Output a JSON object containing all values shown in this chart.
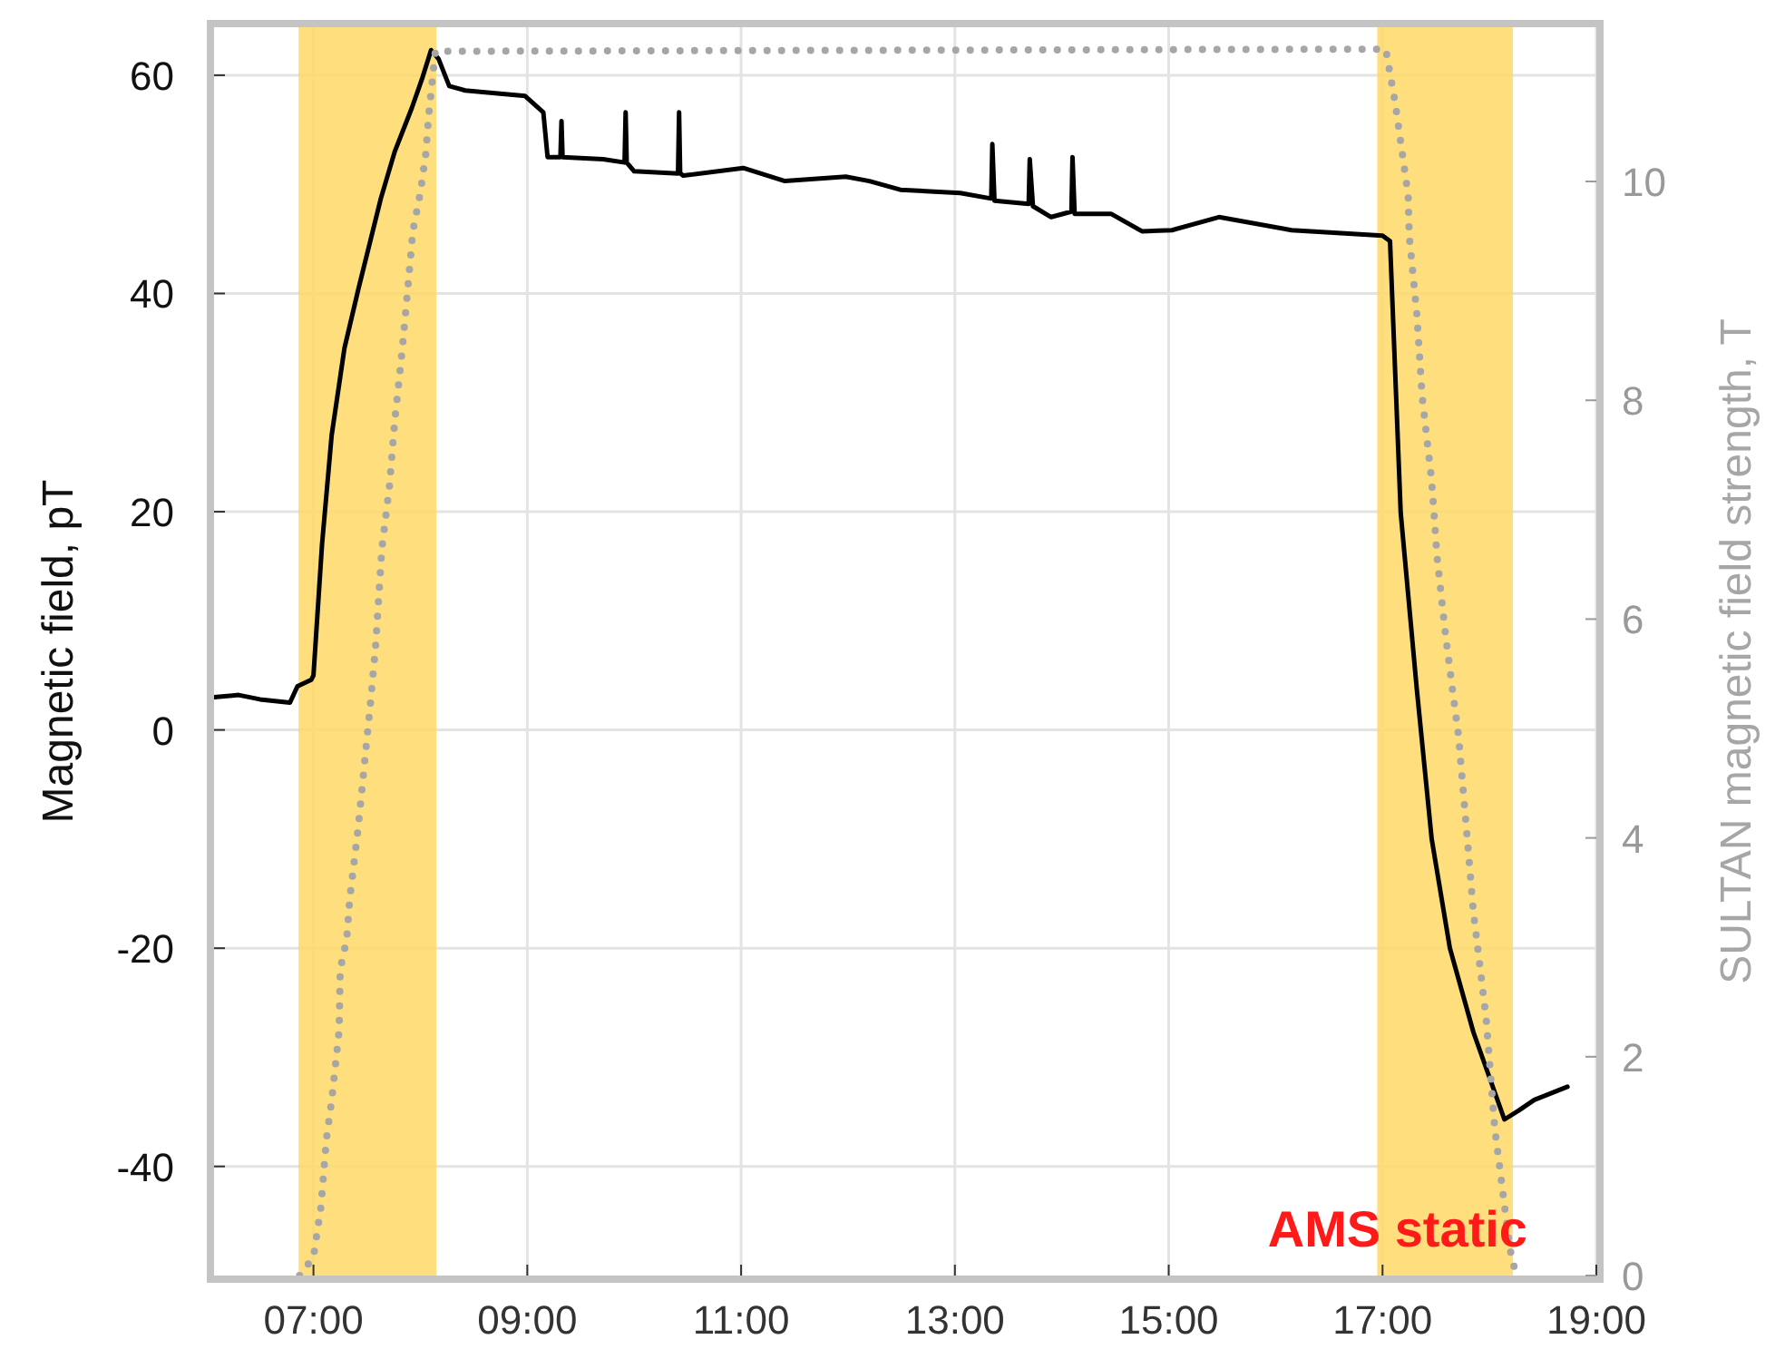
{
  "chart_data": {
    "type": "line",
    "xlabel": null,
    "ylabel": "Magnetic field, pT",
    "y2label": "SULTAN magnetic field strength, T",
    "xlim": [
      6.07,
      19.0
    ],
    "xticks": [
      {
        "value": 7,
        "label": "07:00"
      },
      {
        "value": 9,
        "label": "09:00"
      },
      {
        "value": 11,
        "label": "11:00"
      },
      {
        "value": 13,
        "label": "13:00"
      },
      {
        "value": 15,
        "label": "15:00"
      },
      {
        "value": 17,
        "label": "17:00"
      },
      {
        "value": 19,
        "label": "19:00"
      }
    ],
    "ylim": [
      -50,
      64.4
    ],
    "yticks": [
      -40,
      -20,
      0,
      20,
      40,
      60
    ],
    "y2lim": [
      0,
      11.41
    ],
    "y2ticks": [
      0,
      2,
      4,
      6,
      8,
      10
    ],
    "grid": true,
    "bands": [
      {
        "axis": "x",
        "from": 6.86,
        "to": 8.15,
        "color": "#ffd966"
      },
      {
        "axis": "x",
        "from": 16.95,
        "to": 18.22,
        "color": "#ffd966"
      }
    ],
    "annotations": [
      "AMS static"
    ],
    "series": [
      {
        "color": "#000000",
        "line_style": "solid",
        "x": [
          6.07,
          6.3,
          6.5,
          6.78,
          6.85,
          6.98,
          7.0,
          7.08,
          7.17,
          7.29,
          7.42,
          7.63,
          7.76,
          7.92,
          8.02,
          8.1,
          8.17,
          8.27,
          8.42,
          8.98,
          9.15,
          9.19,
          9.31,
          9.32,
          9.33,
          9.71,
          9.91,
          9.92,
          9.93,
          10.0,
          10.41,
          10.42,
          10.43,
          10.46,
          11.02,
          11.41,
          11.98,
          12.2,
          12.49,
          13.05,
          13.34,
          13.35,
          13.37,
          13.69,
          13.7,
          13.73,
          13.9,
          14.09,
          14.1,
          14.12,
          14.46,
          14.75,
          15.03,
          15.47,
          16.15,
          17.0,
          17.07,
          17.17,
          17.32,
          17.46,
          17.63,
          17.85,
          18.14,
          18.27,
          18.42,
          18.73
        ],
        "values": [
          3.0,
          3.2,
          2.8,
          2.5,
          4.0,
          4.6,
          5.0,
          17,
          27,
          35,
          40.4,
          48.7,
          53,
          57,
          59.8,
          62.3,
          61.5,
          59,
          58.6,
          58.1,
          56.6,
          52.5,
          52.5,
          55.8,
          52.5,
          52.3,
          52,
          56.6,
          52,
          51.2,
          51,
          56.6,
          51,
          50.8,
          51.5,
          50.3,
          50.7,
          50.3,
          49.5,
          49.2,
          48.7,
          53.7,
          48.5,
          48.2,
          52.3,
          48,
          47,
          47.5,
          52.5,
          47.3,
          47.3,
          45.7,
          45.8,
          47,
          45.8,
          45.3,
          44.8,
          19.9,
          3.8,
          -10,
          -20,
          -27.7,
          -35.7,
          -34.9,
          -33.9,
          -32.7
        ]
      },
      {
        "color": "#a6a6a6",
        "axis": "y2",
        "line_style": "dotted",
        "x": [
          6.87,
          7.0,
          7.07,
          7.12,
          7.17,
          7.24,
          7.25,
          7.31,
          7.34,
          7.42,
          7.49,
          7.53,
          7.58,
          7.64,
          7.71,
          7.76,
          7.83,
          7.88,
          7.93,
          8.0,
          8.05,
          8.08,
          8.14,
          17.03,
          17.12,
          17.17,
          17.24,
          17.25,
          17.32,
          17.37,
          17.46,
          17.51,
          17.59,
          17.66,
          17.71,
          17.8,
          17.85,
          17.9,
          17.97,
          18.05,
          18.1,
          18.19,
          18.25
        ],
        "values": [
          0,
          0.17,
          0.63,
          1.24,
          1.6,
          2.24,
          2.8,
          3.07,
          3.45,
          4.11,
          4.81,
          5.2,
          5.74,
          6.65,
          7.21,
          7.81,
          8.46,
          9.0,
          9.55,
          9.9,
          10.25,
          10.63,
          11.19,
          11.21,
          10.71,
          10.36,
          9.87,
          9.5,
          8.8,
          8.04,
          7.26,
          6.57,
          5.85,
          5.31,
          4.94,
          3.91,
          3.32,
          2.92,
          2.34,
          1.34,
          0.96,
          0.25,
          0
        ]
      }
    ]
  }
}
